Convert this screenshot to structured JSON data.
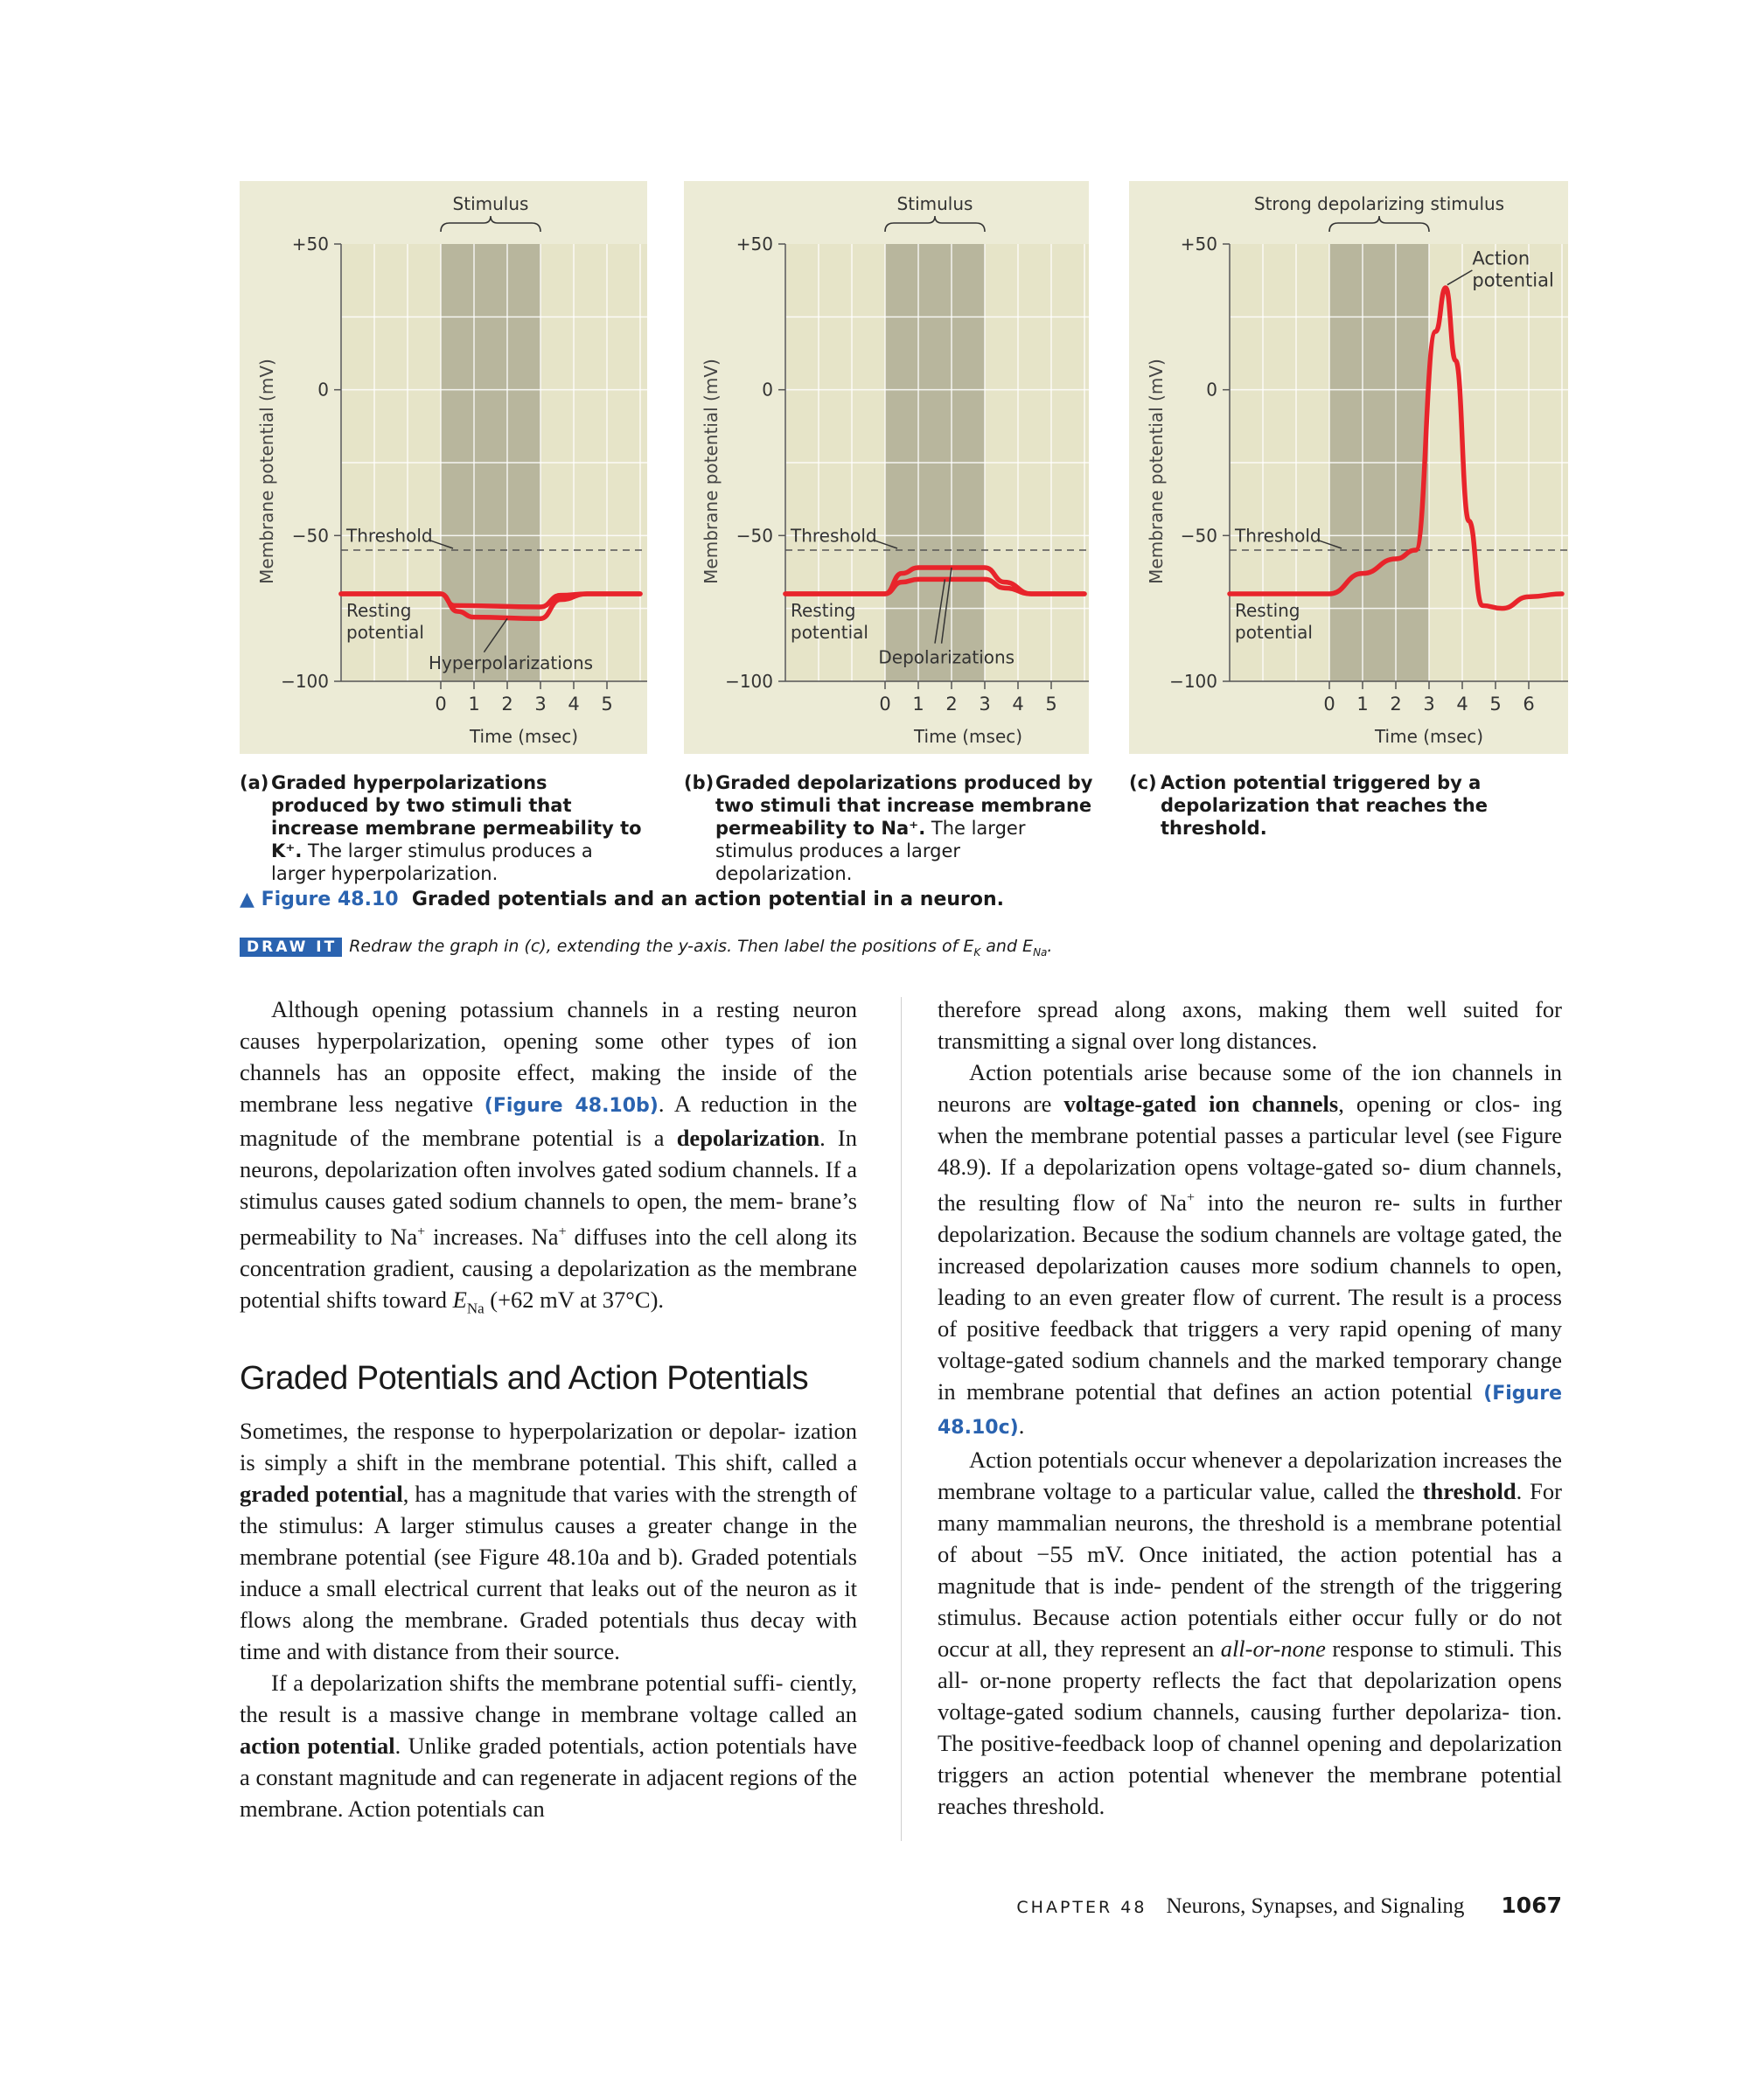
{
  "figure": {
    "panels": [
      {
        "id": "a",
        "stimulus_label": "Stimulus",
        "threshold_label": "Threshold",
        "resting_label_line1": "Resting",
        "resting_label_line2": "potential",
        "curve_label": "Hyperpolarizations",
        "ylabel": "Membrane potential (mV)",
        "xlabel": "Time (msec)",
        "caption_letter": "(a)",
        "caption_bold": "Graded hyperpolarizations produced by two stimuli that increase membrane permeability to K⁺.",
        "caption_normal": " The larger stimulus produces a larger hyperpolarization."
      },
      {
        "id": "b",
        "stimulus_label": "Stimulus",
        "threshold_label": "Threshold",
        "resting_label_line1": "Resting",
        "resting_label_line2": "potential",
        "curve_label": "Depolarizations",
        "ylabel": "Membrane potential (mV)",
        "xlabel": "Time (msec)",
        "caption_letter": "(b)",
        "caption_bold": "Graded depolarizations produced by two stimuli that increase membrane permeability to Na⁺.",
        "caption_normal": " The larger stimulus produces a larger depolarization."
      },
      {
        "id": "c",
        "stimulus_label": "Strong depolarizing stimulus",
        "threshold_label": "Threshold",
        "resting_label_line1": "Resting",
        "resting_label_line2": "potential",
        "curve_label_line1": "Action",
        "curve_label_line2": "potential",
        "ylabel": "Membrane potential (mV)",
        "xlabel": "Time (msec)",
        "caption_letter": "(c)",
        "caption_bold": "Action potential triggered by a depolarization that reaches the threshold.",
        "caption_normal": ""
      }
    ],
    "y_tick_labels": [
      "+50",
      "0",
      "−50",
      "−100"
    ],
    "title_number": "▲ Figure 48.10",
    "title_text": "Graded potentials and an action potential in a neuron.",
    "draw_it_badge": "DRAW IT",
    "draw_it_text": "Redraw the graph in (c), extending the y-axis. Then label the positions of E",
    "draw_it_k": "K",
    "draw_it_and": " and E",
    "draw_it_na": "Na",
    "draw_it_end": ".",
    "colors": {
      "curve": "#e8242b",
      "stimulus_band": "#b8b69d",
      "panel_bg": "#ecebd6",
      "link": "#2a63b0"
    }
  },
  "chart_data": [
    {
      "type": "line",
      "xlabel": "Time (msec)",
      "ylabel": "Membrane potential (mV)",
      "xlim": [
        -3,
        6
      ],
      "ylim": [
        -100,
        50
      ],
      "x_ticks": [
        0,
        1,
        2,
        3,
        4,
        5
      ],
      "y_ticks": [
        50,
        0,
        -50,
        -100
      ],
      "y_tick_labels": [
        "+50",
        "0",
        "−50",
        "−100"
      ],
      "threshold": -55,
      "resting": -70,
      "stimulus_window": [
        0,
        3
      ],
      "series": [
        {
          "x": [
            -3,
            0,
            0.4,
            3,
            3.6,
            4.4,
            6
          ],
          "y": [
            -70,
            -70,
            -74,
            -74.5,
            -70.5,
            -70,
            -70
          ]
        },
        {
          "x": [
            -3,
            0,
            0.5,
            1,
            3,
            3.6,
            4.4,
            6
          ],
          "y": [
            -70,
            -70,
            -76,
            -78,
            -78.5,
            -72,
            -70,
            -70
          ]
        }
      ]
    },
    {
      "type": "line",
      "xlabel": "Time (msec)",
      "ylabel": "Membrane potential (mV)",
      "xlim": [
        -3,
        6
      ],
      "ylim": [
        -100,
        50
      ],
      "x_ticks": [
        0,
        1,
        2,
        3,
        4,
        5
      ],
      "y_ticks": [
        50,
        0,
        -50,
        -100
      ],
      "y_tick_labels": [
        "+50",
        "0",
        "−50",
        "−100"
      ],
      "threshold": -55,
      "resting": -70,
      "stimulus_window": [
        0,
        3
      ],
      "series": [
        {
          "x": [
            -3,
            0,
            0.5,
            1,
            3,
            3.6,
            4.4,
            6
          ],
          "y": [
            -70,
            -70,
            -66,
            -65,
            -65,
            -68,
            -70,
            -70
          ]
        },
        {
          "x": [
            -3,
            0,
            0.5,
            1,
            3,
            3.6,
            4.4,
            6
          ],
          "y": [
            -70,
            -70,
            -63,
            -61,
            -61,
            -66,
            -70,
            -70
          ]
        }
      ]
    },
    {
      "type": "line",
      "xlabel": "Time (msec)",
      "ylabel": "Membrane potential (mV)",
      "xlim": [
        -3,
        7
      ],
      "ylim": [
        -100,
        50
      ],
      "x_ticks": [
        0,
        1,
        2,
        3,
        4,
        5,
        6
      ],
      "y_ticks": [
        50,
        0,
        -50,
        -100
      ],
      "y_tick_labels": [
        "+50",
        "0",
        "−50",
        "−100"
      ],
      "threshold": -55,
      "resting": -70,
      "stimulus_window": [
        0,
        3
      ],
      "series": [
        {
          "x": [
            -3,
            0,
            1,
            2,
            2.6,
            3.2,
            3.5,
            3.8,
            4.2,
            4.6,
            5.2,
            6,
            7
          ],
          "y": [
            -70,
            -70,
            -63,
            -58,
            -55,
            20,
            35,
            10,
            -45,
            -74,
            -75,
            -71,
            -70
          ]
        }
      ]
    }
  ],
  "body": {
    "col_left": {
      "p1": [
        "Although opening potassium channels in a resting neuron causes hyperpolarization, opening some other types of ion channels has an opposite effect, making the inside of the membrane less negative ",
        "(Figure 48.10b)",
        ". A reduction in the magnitude of the membrane potential is a ",
        "depolarization",
        ". In neurons, depolarization often involves gated sodium channels. If a stimulus causes gated sodium channels to open, the mem- brane’s permeability to Na",
        "+",
        " increases. Na",
        "+",
        " diffuses into the cell along its concentration gradient, causing a depolarization as the membrane potential shifts toward ",
        "E",
        "Na",
        " (+62 mV at 37°C)."
      ],
      "heading": "Graded Potentials and Action Potentials",
      "p2": [
        "Sometimes, the response to hyperpolarization or depolar- ization is simply a shift in the membrane potential. This shift, called a ",
        "graded potential",
        ", has a magnitude that varies with the strength of the stimulus: A larger stimulus causes a greater change in the membrane potential (see Figure 48.10a and b). Graded potentials induce a small electrical current that leaks out of the neuron as it flows along the membrane. Graded potentials thus decay with time and with distance from their source."
      ],
      "p3": [
        "If a depolarization shifts the membrane potential suffi- ciently, the result is a massive change in membrane voltage called an ",
        "action potential",
        ". Unlike graded potentials, action potentials have a constant magnitude and can regenerate in adjacent regions of the membrane. Action potentials can"
      ]
    },
    "col_right": {
      "p1": "therefore spread along axons, making them well suited for transmitting a signal over long distances.",
      "p2": [
        "Action potentials arise because some of the ion channels in neurons are ",
        "voltage-gated ion channels",
        ", opening or clos- ing when the membrane potential passes a particular level (see Figure 48.9). If a depolarization opens voltage-gated so- dium channels, the resulting flow of Na",
        "+",
        " into the neuron re- sults in further depolarization. Because the sodium channels are voltage gated, the increased depolarization causes more sodium channels to open, leading to an even greater flow of current. The result is a process of positive feedback that triggers a very rapid opening of many voltage-gated sodium channels and the marked temporary change in membrane potential that defines an action potential ",
        "(Figure 48.10c)",
        "."
      ],
      "p3": [
        "Action potentials occur whenever a depolarization increases the membrane voltage to a particular value, called the ",
        "threshold",
        ". For many mammalian neurons, the threshold is a membrane potential of about −55 mV. Once initiated, the action potential has a magnitude that is inde- pendent of the strength of the triggering stimulus. Because action potentials either occur fully or do not occur at all, they represent an ",
        "all-or-none",
        " response to stimuli. This all- or-none property reflects the fact that depolarization opens voltage-gated sodium channels, causing further depolariza- tion. The positive-feedback loop of channel opening and depolarization triggers an action potential whenever the membrane potential reaches threshold."
      ]
    }
  },
  "footer": {
    "chapter": "CHAPTER 48",
    "title": "Neurons, Synapses, and Signaling",
    "page": "1067"
  }
}
